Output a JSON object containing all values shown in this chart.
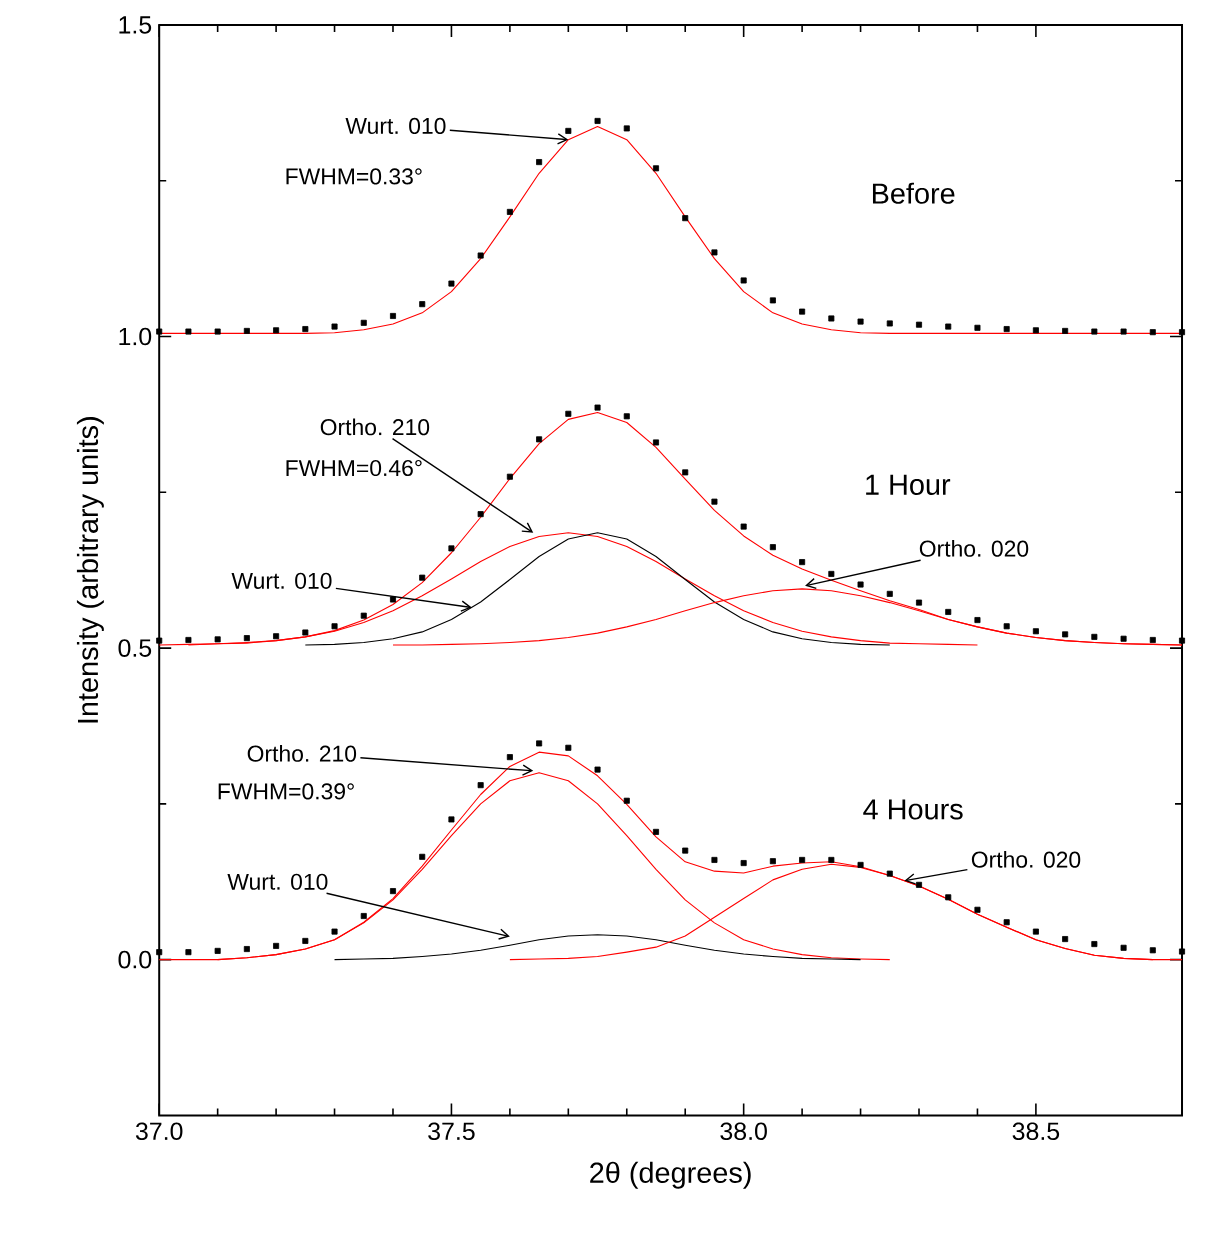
{
  "chart_data": {
    "type": "line",
    "xlabel": "2θ (degrees)",
    "ylabel": "Intensity (arbitrary units)",
    "xlim": [
      37.0,
      38.75
    ],
    "ylim": [
      -0.25,
      1.5
    ],
    "xticks": [
      {
        "value": 37.0,
        "label": "37.0"
      },
      {
        "value": 37.5,
        "label": "37.5"
      },
      {
        "value": 38.0,
        "label": "38.0"
      },
      {
        "value": 38.5,
        "label": "38.5"
      }
    ],
    "yticks": [
      {
        "value": 0.0,
        "label": "0.0"
      },
      {
        "value": 0.5,
        "label": "0.5"
      },
      {
        "value": 1.0,
        "label": "1.0"
      },
      {
        "value": 1.5,
        "label": "1.5"
      }
    ],
    "x": [
      37.0,
      37.05,
      37.1,
      37.15,
      37.2,
      37.25,
      37.3,
      37.35,
      37.4,
      37.45,
      37.5,
      37.55,
      37.6,
      37.65,
      37.7,
      37.75,
      37.8,
      37.85,
      37.9,
      37.95,
      38.0,
      38.05,
      38.1,
      38.15,
      38.2,
      38.25,
      38.3,
      38.35,
      38.4,
      38.45,
      38.5,
      38.55,
      38.6,
      38.65,
      38.7,
      38.75
    ],
    "series": [
      {
        "color": "#ff0000",
        "values": [
          1.005,
          1.005,
          1.005,
          1.005,
          1.005,
          1.005,
          1.006,
          1.011,
          1.02,
          1.038,
          1.072,
          1.125,
          1.192,
          1.262,
          1.316,
          1.337,
          1.316,
          1.262,
          1.192,
          1.125,
          1.072,
          1.038,
          1.02,
          1.011,
          1.006,
          1.005,
          1.005,
          1.005,
          1.005,
          1.005,
          1.005,
          1.005,
          1.005,
          1.005,
          1.005,
          1.005
        ]
      },
      {
        "color": "#ff0000",
        "values": [
          null,
          0.505,
          0.507,
          0.508,
          0.512,
          0.518,
          0.527,
          0.541,
          0.56,
          0.584,
          0.611,
          0.639,
          0.663,
          0.679,
          0.685,
          0.679,
          0.663,
          0.639,
          0.611,
          0.584,
          0.56,
          0.541,
          0.527,
          0.518,
          0.512,
          0.508,
          0.507,
          0.506,
          0.505,
          null,
          null,
          null,
          null,
          null,
          null,
          null
        ]
      },
      {
        "color": "#000000",
        "values": [
          null,
          null,
          null,
          null,
          null,
          0.505,
          0.506,
          0.509,
          0.515,
          0.526,
          0.546,
          0.574,
          0.61,
          0.647,
          0.675,
          0.685,
          0.675,
          0.647,
          0.61,
          0.574,
          0.546,
          0.526,
          0.515,
          0.509,
          0.506,
          0.505,
          null,
          null,
          null,
          null,
          null,
          null,
          null,
          null,
          null,
          null
        ]
      },
      {
        "color": "#ff0000",
        "values": [
          null,
          null,
          null,
          null,
          null,
          null,
          null,
          null,
          0.505,
          0.505,
          0.506,
          0.507,
          0.509,
          0.512,
          0.517,
          0.524,
          0.534,
          0.546,
          0.56,
          0.573,
          0.584,
          0.592,
          0.595,
          0.592,
          0.584,
          0.573,
          0.56,
          0.546,
          0.534,
          0.524,
          0.517,
          0.512,
          0.509,
          0.507,
          0.506,
          0.505
        ]
      },
      {
        "color": "#ff0000",
        "values": [
          0.505,
          0.506,
          0.507,
          0.509,
          0.512,
          0.518,
          0.528,
          0.545,
          0.57,
          0.605,
          0.653,
          0.71,
          0.772,
          0.828,
          0.867,
          0.878,
          0.862,
          0.822,
          0.771,
          0.721,
          0.68,
          0.649,
          0.627,
          0.609,
          0.592,
          0.576,
          0.562,
          0.546,
          0.534,
          0.524,
          0.517,
          0.512,
          0.509,
          0.507,
          0.506,
          0.505
        ]
      },
      {
        "color": "#ff0000",
        "values": [
          null,
          null,
          0,
          0.003,
          0.008,
          0.017,
          0.032,
          0.059,
          0.096,
          0.145,
          0.199,
          0.25,
          0.287,
          0.3,
          0.287,
          0.25,
          0.199,
          0.145,
          0.096,
          0.059,
          0.032,
          0.017,
          0.008,
          0.003,
          0.001,
          0,
          null,
          null,
          null,
          null,
          null,
          null,
          null,
          null,
          null,
          null
        ]
      },
      {
        "color": "#000000",
        "values": [
          null,
          null,
          null,
          null,
          null,
          null,
          0,
          0.001,
          0.002,
          0.005,
          0.009,
          0.015,
          0.023,
          0.032,
          0.038,
          0.04,
          0.038,
          0.032,
          0.023,
          0.015,
          0.009,
          0.005,
          0.002,
          0.001,
          0,
          null,
          null,
          null,
          null,
          null,
          null,
          null,
          null,
          null,
          null,
          null
        ]
      },
      {
        "color": "#ff0000",
        "values": [
          null,
          null,
          null,
          null,
          null,
          null,
          null,
          null,
          null,
          null,
          null,
          null,
          0,
          0.001,
          0.002,
          0.005,
          0.012,
          0.02,
          0.038,
          0.068,
          0.098,
          0.128,
          0.145,
          0.153,
          0.148,
          0.135,
          0.118,
          0.097,
          0.073,
          0.052,
          0.032,
          0.018,
          0.007,
          0.002,
          0,
          null
        ]
      },
      {
        "color": "#ff0000",
        "values": [
          0,
          0,
          0,
          0.003,
          0.008,
          0.017,
          0.032,
          0.06,
          0.098,
          0.15,
          0.208,
          0.265,
          0.31,
          0.333,
          0.327,
          0.295,
          0.249,
          0.197,
          0.157,
          0.142,
          0.139,
          0.15,
          0.155,
          0.157,
          0.149,
          0.135,
          0.118,
          0.097,
          0.073,
          0.052,
          0.032,
          0.018,
          0.007,
          0.002,
          0,
          0
        ]
      },
      {
        "type": "scatter",
        "marker": "square",
        "color": "#000000",
        "values": [
          1.008,
          1.008,
          1.008,
          1.009,
          1.01,
          1.012,
          1.016,
          1.022,
          1.033,
          1.052,
          1.085,
          1.13,
          1.2,
          1.28,
          1.33,
          1.346,
          1.334,
          1.27,
          1.19,
          1.135,
          1.09,
          1.058,
          1.04,
          1.029,
          1.024,
          1.021,
          1.019,
          1.016,
          1.014,
          1.012,
          1.01,
          1.009,
          1.008,
          1.008,
          1.007,
          1.007
        ]
      },
      {
        "type": "scatter",
        "marker": "square",
        "color": "#000000",
        "values": [
          0.512,
          0.513,
          0.514,
          0.516,
          0.519,
          0.525,
          0.535,
          0.552,
          0.578,
          0.613,
          0.66,
          0.715,
          0.775,
          0.835,
          0.876,
          0.886,
          0.872,
          0.83,
          0.782,
          0.735,
          0.695,
          0.662,
          0.638,
          0.619,
          0.602,
          0.587,
          0.573,
          0.558,
          0.545,
          0.535,
          0.527,
          0.522,
          0.518,
          0.515,
          0.513,
          0.512
        ]
      },
      {
        "type": "scatter",
        "marker": "square",
        "color": "#000000",
        "values": [
          0.012,
          0.012,
          0.014,
          0.017,
          0.022,
          0.03,
          0.045,
          0.07,
          0.11,
          0.165,
          0.225,
          0.28,
          0.325,
          0.347,
          0.34,
          0.305,
          0.255,
          0.205,
          0.175,
          0.16,
          0.155,
          0.158,
          0.16,
          0.16,
          0.152,
          0.138,
          0.12,
          0.1,
          0.08,
          0.06,
          0.045,
          0.033,
          0.025,
          0.019,
          0.015,
          0.013
        ]
      }
    ],
    "annotations": [
      {
        "text": "Wurt. 010",
        "x": 37.7,
        "y": 1.316
      },
      "FWHM=0.33°",
      {
        "text": "Ortho. 210",
        "x": 37.64,
        "y": 0.685
      },
      "FWHM=0.46°",
      {
        "text": "Wurt. 010",
        "x": 37.535,
        "y": 0.565
      },
      {
        "text": "Ortho. 020",
        "x": 38.105,
        "y": 0.6
      },
      {
        "text": "Ortho. 210",
        "x": 37.64,
        "y": 0.303
      },
      "FWHM=0.39°",
      {
        "text": "Wurt. 010",
        "x": 37.6,
        "y": 0.037
      },
      {
        "text": "Ortho. 020",
        "x": 38.275,
        "y": 0.1265
      },
      "Before",
      "1 Hour",
      "4 Hours"
    ]
  }
}
